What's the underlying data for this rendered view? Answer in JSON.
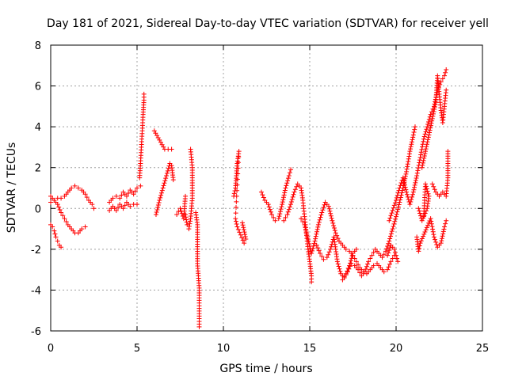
{
  "chart_data": {
    "type": "scatter",
    "title": "Day 181 of 2021, Sidereal Day-to-day VTEC variation (SDTVAR) for receiver yell",
    "xlabel": "GPS time / hours",
    "ylabel": "SDTVAR / TECUs",
    "xlim": [
      0,
      25
    ],
    "ylim": [
      -6,
      8
    ],
    "xticks": [
      "0",
      "5",
      "10",
      "15",
      "20",
      "25"
    ],
    "yticks": [
      "-6",
      "-4",
      "-2",
      "0",
      "2",
      "4",
      "6",
      "8"
    ],
    "grid": true,
    "marker": "+",
    "color": "#ff0000",
    "series": [
      {
        "name": "SDTVAR",
        "segments": [
          [
            [
              0.0,
              0.3
            ],
            [
              0.2,
              0.4
            ],
            [
              0.4,
              0.5
            ],
            [
              0.6,
              0.5
            ],
            [
              0.8,
              0.6
            ],
            [
              1.0,
              0.8
            ],
            [
              1.2,
              1.0
            ],
            [
              1.4,
              1.1
            ],
            [
              1.6,
              1.0
            ],
            [
              1.8,
              0.9
            ],
            [
              2.0,
              0.7
            ],
            [
              2.2,
              0.4
            ],
            [
              2.4,
              0.2
            ],
            [
              2.5,
              0.0
            ]
          ],
          [
            [
              0.0,
              0.6
            ],
            [
              0.2,
              0.4
            ],
            [
              0.4,
              0.2
            ],
            [
              0.6,
              -0.2
            ],
            [
              0.8,
              -0.5
            ],
            [
              1.0,
              -0.8
            ],
            [
              1.2,
              -1.0
            ],
            [
              1.4,
              -1.2
            ],
            [
              1.6,
              -1.2
            ],
            [
              1.8,
              -1.0
            ],
            [
              2.0,
              -0.9
            ]
          ],
          [
            [
              0.0,
              -0.8
            ],
            [
              0.1,
              -0.9
            ],
            [
              0.2,
              -1.1
            ],
            [
              0.3,
              -1.4
            ],
            [
              0.4,
              -1.6
            ],
            [
              0.5,
              -1.8
            ],
            [
              0.6,
              -1.9
            ]
          ],
          [
            [
              3.4,
              0.3
            ],
            [
              3.6,
              0.5
            ],
            [
              3.8,
              0.6
            ],
            [
              4.0,
              0.5
            ],
            [
              4.2,
              0.8
            ],
            [
              4.4,
              0.6
            ],
            [
              4.6,
              0.9
            ],
            [
              4.8,
              0.7
            ],
            [
              5.0,
              1.0
            ],
            [
              5.2,
              1.1
            ]
          ],
          [
            [
              3.4,
              -0.1
            ],
            [
              3.6,
              0.1
            ],
            [
              3.8,
              -0.1
            ],
            [
              4.0,
              0.2
            ],
            [
              4.2,
              0.0
            ],
            [
              4.4,
              0.3
            ],
            [
              4.6,
              0.1
            ],
            [
              4.8,
              0.2
            ],
            [
              5.0,
              0.2
            ]
          ],
          [
            [
              5.15,
              1.5
            ],
            [
              5.2,
              2.2
            ],
            [
              5.25,
              3.0
            ],
            [
              5.3,
              3.8
            ],
            [
              5.35,
              4.6
            ],
            [
              5.4,
              5.3
            ],
            [
              5.4,
              5.6
            ]
          ],
          [
            [
              6.1,
              -0.3
            ],
            [
              6.3,
              0.4
            ],
            [
              6.5,
              1.0
            ],
            [
              6.7,
              1.6
            ],
            [
              6.9,
              2.2
            ],
            [
              7.0,
              2.1
            ],
            [
              7.1,
              1.4
            ]
          ],
          [
            [
              6.0,
              3.8
            ],
            [
              6.6,
              2.9
            ],
            [
              6.8,
              2.9
            ],
            [
              7.0,
              2.9
            ]
          ],
          [
            [
              7.3,
              -0.3
            ],
            [
              7.5,
              0.0
            ],
            [
              7.7,
              -0.5
            ],
            [
              7.8,
              0.6
            ]
          ],
          [
            [
              7.8,
              -0.3
            ],
            [
              7.9,
              -0.8
            ],
            [
              8.0,
              -1.0
            ],
            [
              8.1,
              -0.5
            ],
            [
              8.2,
              0.5
            ],
            [
              8.2,
              1.0
            ],
            [
              8.2,
              2.0
            ],
            [
              8.1,
              2.9
            ]
          ],
          [
            [
              8.4,
              -0.2
            ],
            [
              8.5,
              -0.8
            ],
            [
              8.5,
              -1.4
            ],
            [
              8.5,
              -2.7
            ],
            [
              8.6,
              -3.9
            ],
            [
              8.6,
              -4.5
            ],
            [
              8.6,
              -4.9
            ],
            [
              8.6,
              -5.4
            ],
            [
              8.6,
              -5.8
            ]
          ],
          [
            [
              10.6,
              0.6
            ],
            [
              10.7,
              1.0
            ],
            [
              10.8,
              2.2
            ],
            [
              10.9,
              2.8
            ],
            [
              10.7,
              -0.5
            ],
            [
              10.8,
              -0.9
            ],
            [
              11.0,
              -1.3
            ],
            [
              11.2,
              -1.7
            ],
            [
              11.3,
              -1.5
            ],
            [
              11.1,
              -0.7
            ]
          ],
          [
            [
              12.2,
              0.8
            ],
            [
              12.4,
              0.4
            ],
            [
              12.6,
              0.2
            ],
            [
              12.8,
              -0.3
            ],
            [
              13.0,
              -0.6
            ],
            [
              13.2,
              -0.5
            ],
            [
              13.4,
              0.2
            ],
            [
              13.6,
              1.0
            ],
            [
              13.8,
              1.6
            ],
            [
              13.9,
              1.9
            ]
          ],
          [
            [
              13.5,
              -0.6
            ],
            [
              13.7,
              -0.3
            ],
            [
              13.9,
              0.2
            ],
            [
              14.1,
              0.8
            ],
            [
              14.3,
              1.2
            ],
            [
              14.5,
              1.0
            ],
            [
              14.6,
              0.4
            ],
            [
              14.7,
              -0.4
            ],
            [
              14.8,
              -1.2
            ],
            [
              14.9,
              -2.0
            ],
            [
              15.0,
              -2.6
            ],
            [
              15.1,
              -3.3
            ],
            [
              15.1,
              -3.6
            ]
          ],
          [
            [
              14.5,
              -0.5
            ],
            [
              14.7,
              -0.8
            ],
            [
              14.9,
              -1.5
            ],
            [
              15.1,
              -2.2
            ],
            [
              15.3,
              -1.6
            ],
            [
              15.5,
              -0.8
            ],
            [
              15.7,
              -0.2
            ],
            [
              15.9,
              0.3
            ],
            [
              16.1,
              0.1
            ],
            [
              16.3,
              -0.6
            ],
            [
              16.5,
              -1.2
            ],
            [
              16.7,
              -1.6
            ],
            [
              16.9,
              -1.8
            ],
            [
              17.1,
              -2.0
            ],
            [
              17.3,
              -2.1
            ],
            [
              17.5,
              -2.3
            ],
            [
              17.7,
              -2.6
            ],
            [
              17.9,
              -2.9
            ],
            [
              18.1,
              -3.1
            ],
            [
              18.3,
              -3.2
            ],
            [
              18.5,
              -3.0
            ],
            [
              18.7,
              -2.8
            ],
            [
              18.9,
              -2.7
            ],
            [
              19.1,
              -2.9
            ],
            [
              19.3,
              -3.1
            ],
            [
              19.5,
              -3.0
            ],
            [
              19.7,
              -2.6
            ],
            [
              19.9,
              -2.3
            ]
          ],
          [
            [
              15.4,
              -1.8
            ],
            [
              15.6,
              -2.2
            ],
            [
              15.8,
              -2.5
            ],
            [
              16.0,
              -2.4
            ],
            [
              16.2,
              -2.0
            ],
            [
              16.4,
              -1.4
            ],
            [
              16.6,
              -2.6
            ],
            [
              16.8,
              -3.2
            ],
            [
              17.0,
              -3.4
            ],
            [
              17.2,
              -3.1
            ],
            [
              17.4,
              -2.7
            ],
            [
              17.6,
              -2.8
            ],
            [
              17.8,
              -3.0
            ],
            [
              18.0,
              -3.3
            ],
            [
              18.2,
              -3.1
            ],
            [
              18.4,
              -2.6
            ],
            [
              18.6,
              -2.3
            ],
            [
              18.8,
              -2.0
            ],
            [
              19.0,
              -2.2
            ],
            [
              19.2,
              -2.4
            ],
            [
              19.4,
              -2.1
            ],
            [
              19.6,
              -1.6
            ],
            [
              19.8,
              -1.0
            ],
            [
              20.0,
              -0.4
            ],
            [
              20.2,
              0.3
            ],
            [
              20.4,
              1.0
            ],
            [
              20.6,
              1.8
            ],
            [
              20.8,
              2.8
            ],
            [
              21.0,
              3.6
            ],
            [
              21.1,
              4.0
            ]
          ],
          [
            [
              19.6,
              -0.6
            ],
            [
              19.8,
              -0.1
            ],
            [
              20.0,
              0.4
            ],
            [
              20.2,
              1.0
            ],
            [
              20.4,
              1.5
            ],
            [
              20.6,
              0.8
            ],
            [
              20.8,
              0.2
            ],
            [
              21.0,
              0.8
            ],
            [
              21.2,
              1.6
            ],
            [
              21.4,
              2.5
            ],
            [
              21.6,
              3.4
            ],
            [
              21.8,
              4.0
            ],
            [
              22.0,
              4.6
            ],
            [
              22.2,
              5.0
            ],
            [
              22.4,
              5.8
            ],
            [
              22.6,
              6.2
            ],
            [
              22.8,
              6.5
            ],
            [
              22.9,
              6.8
            ]
          ],
          [
            [
              21.5,
              2.0
            ],
            [
              21.7,
              2.8
            ],
            [
              21.9,
              3.6
            ],
            [
              22.1,
              4.4
            ],
            [
              22.3,
              5.2
            ],
            [
              22.4,
              6.5
            ],
            [
              22.5,
              5.6
            ],
            [
              22.6,
              4.8
            ],
            [
              22.7,
              4.2
            ],
            [
              22.8,
              5.0
            ],
            [
              22.9,
              5.8
            ]
          ],
          [
            [
              21.2,
              -1.4
            ],
            [
              21.3,
              -2.1
            ],
            [
              21.4,
              -1.7
            ],
            [
              22.0,
              -0.5
            ],
            [
              22.2,
              -1.4
            ],
            [
              22.4,
              -1.9
            ],
            [
              22.6,
              -1.7
            ],
            [
              22.8,
              -0.9
            ],
            [
              22.9,
              -0.6
            ]
          ],
          [
            [
              22.1,
              1.2
            ],
            [
              22.3,
              0.8
            ],
            [
              22.5,
              0.6
            ],
            [
              22.7,
              0.8
            ],
            [
              22.9,
              0.6
            ],
            [
              23.0,
              1.5
            ],
            [
              23.0,
              2.2
            ],
            [
              23.0,
              2.8
            ]
          ],
          [
            [
              16.9,
              -3.5
            ],
            [
              17.1,
              -3.2
            ],
            [
              17.3,
              -2.8
            ],
            [
              17.5,
              -2.2
            ],
            [
              17.7,
              -2.0
            ]
          ],
          [
            [
              19.5,
              -2.3
            ],
            [
              19.7,
              -1.8
            ],
            [
              19.9,
              -2.0
            ],
            [
              20.0,
              -2.3
            ],
            [
              20.1,
              -2.6
            ]
          ],
          [
            [
              21.3,
              0.0
            ],
            [
              21.5,
              -0.6
            ],
            [
              21.8,
              0.0
            ],
            [
              21.9,
              0.6
            ],
            [
              21.7,
              1.2
            ],
            [
              21.6,
              -0.4
            ]
          ]
        ]
      }
    ]
  }
}
